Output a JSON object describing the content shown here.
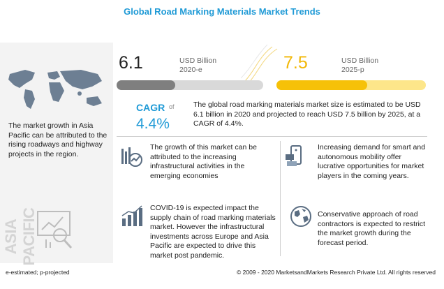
{
  "title": "Global Road Marking Materials Market Trends",
  "stats": {
    "value_2020": "6.1",
    "unit_2020": "USD Billion",
    "year_2020": "2020-e",
    "value_2025": "7.5",
    "unit_2025": "USD Billion",
    "year_2025": "2025-p"
  },
  "cagr": {
    "label": "CAGR",
    "of": "of",
    "value": "4.4%"
  },
  "summary": "The global road marking materials market size is estimated to be USD 6.1 billion in 2020 and projected to reach USD 7.5 billion by 2025, at a CAGR of 4.4%.",
  "left": {
    "text": "The market growth in Asia Pacific can be attributed to the rising roadways and highway projects in the region.",
    "vertical_label": "ASIA PACIFIC"
  },
  "cards": [
    {
      "icon": "growth-chart-icon",
      "text": "The growth of this market can be attributed to the increasing infrastructural activities in the emerging economies"
    },
    {
      "icon": "smartphone-money-icon",
      "text": "Increasing demand for smart and autonomous mobility offer lucrative opportunities for market players in the coming years."
    },
    {
      "icon": "bar-chart-icon",
      "text": "COVID-19 is expected impact the supply chain of road marking materials market. However the infrastructural investments across Europe and Asia Pacific are expected to drive this market post pandemic."
    },
    {
      "icon": "globe-icon",
      "text": "Conservative approach of road contractors is expected to restrict the market growth during the forecast period."
    }
  ],
  "footer": {
    "left": "e-estimated; p-projected",
    "right": "© 2009 - 2020 MarketsandMarkets Research Private Ltd. All rights reserved"
  },
  "colors": {
    "accent_blue": "#1f9ad6",
    "accent_yellow": "#f6c108",
    "grey_bar": "#7f7f7f"
  }
}
